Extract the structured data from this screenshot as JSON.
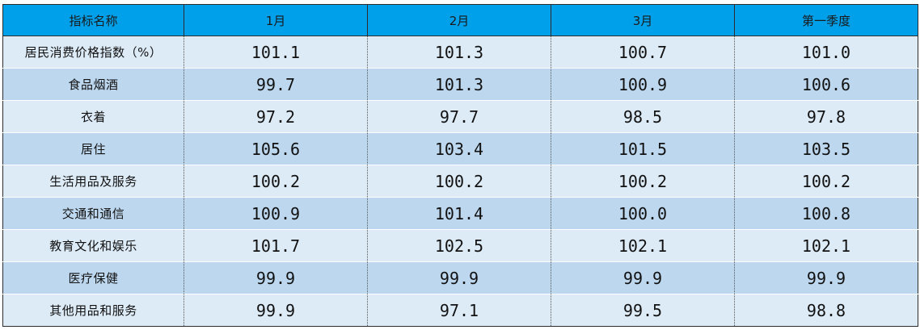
{
  "table": {
    "headers": [
      "指标名称",
      "1月",
      "2月",
      "3月",
      "第一季度"
    ],
    "rows": [
      {
        "name": "居民消费价格指数（%）",
        "values": [
          "101.1",
          "101.3",
          "100.7",
          "101.0"
        ]
      },
      {
        "name": "食品烟酒",
        "values": [
          "99.7",
          "101.3",
          "100.9",
          "100.6"
        ]
      },
      {
        "name": "衣着",
        "values": [
          "97.2",
          "97.7",
          "98.5",
          "97.8"
        ]
      },
      {
        "name": "居住",
        "values": [
          "105.6",
          "103.4",
          "101.5",
          "103.5"
        ]
      },
      {
        "name": "生活用品及服务",
        "values": [
          "100.2",
          "100.2",
          "100.2",
          "100.2"
        ]
      },
      {
        "name": "交通和通信",
        "values": [
          "100.9",
          "101.4",
          "100.0",
          "100.8"
        ]
      },
      {
        "name": "教育文化和娱乐",
        "values": [
          "101.7",
          "102.5",
          "102.1",
          "102.1"
        ]
      },
      {
        "name": "医疗保健",
        "values": [
          "99.9",
          "99.9",
          "99.9",
          "99.9"
        ]
      },
      {
        "name": "其他用品和服务",
        "values": [
          "99.9",
          "97.1",
          "99.5",
          "98.8"
        ]
      }
    ]
  },
  "colors": {
    "header_bg": "#00a0ea",
    "row_light": "#ddebf7",
    "row_dark": "#bdd7ee"
  }
}
